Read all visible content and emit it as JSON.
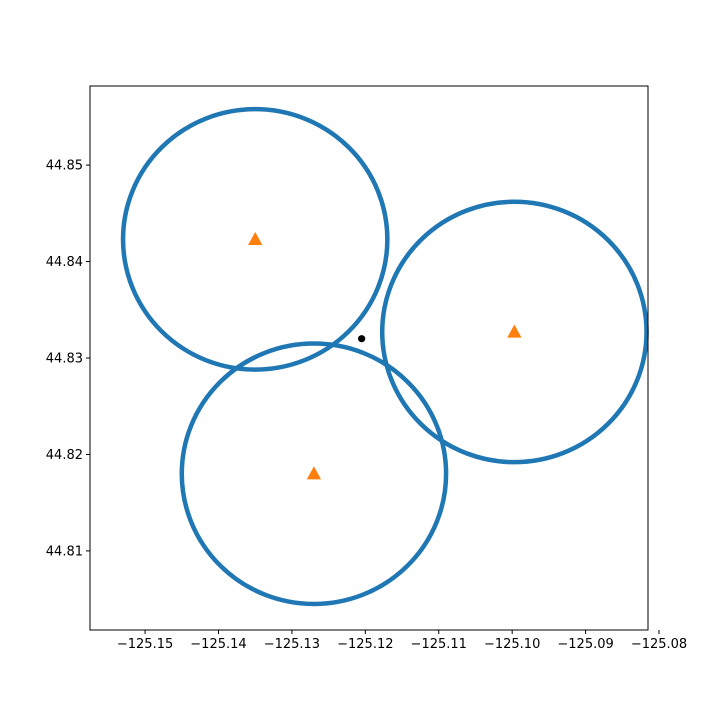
{
  "chart_data": {
    "type": "scatter",
    "title": "",
    "xlabel": "",
    "ylabel": "",
    "xlim": [
      -125.1575,
      -125.0815
    ],
    "ylim": [
      44.8018,
      44.8582
    ],
    "grid": false,
    "xticks": [
      -125.15,
      -125.14,
      -125.13,
      -125.12,
      -125.11,
      -125.1,
      -125.09,
      -125.08
    ],
    "xtick_labels": [
      "−125.15",
      "−125.14",
      "−125.13",
      "−125.12",
      "−125.11",
      "−125.10",
      "−125.09",
      "−125.08"
    ],
    "yticks": [
      44.81,
      44.82,
      44.83,
      44.84,
      44.85
    ],
    "ytick_labels": [
      "44.81",
      "44.82",
      "44.83",
      "44.84",
      "44.85"
    ],
    "colors": {
      "circle": "#1f77b4",
      "station": "#ff7f0e",
      "point": "#000000",
      "axes": "#000000"
    },
    "range_circles": [
      {
        "center": [
          -125.135,
          44.8423
        ],
        "radius_x": 0.018,
        "radius_y": 0.0135
      },
      {
        "center": [
          -125.0997,
          44.8327
        ],
        "radius_x": 0.018,
        "radius_y": 0.0135
      },
      {
        "center": [
          -125.127,
          44.818
        ],
        "radius_x": 0.018,
        "radius_y": 0.0135
      }
    ],
    "stations": [
      {
        "x": -125.135,
        "y": 44.8423
      },
      {
        "x": -125.0997,
        "y": 44.8327
      },
      {
        "x": -125.127,
        "y": 44.818
      }
    ],
    "estimated_point": {
      "x": -125.1205,
      "y": 44.832
    }
  }
}
